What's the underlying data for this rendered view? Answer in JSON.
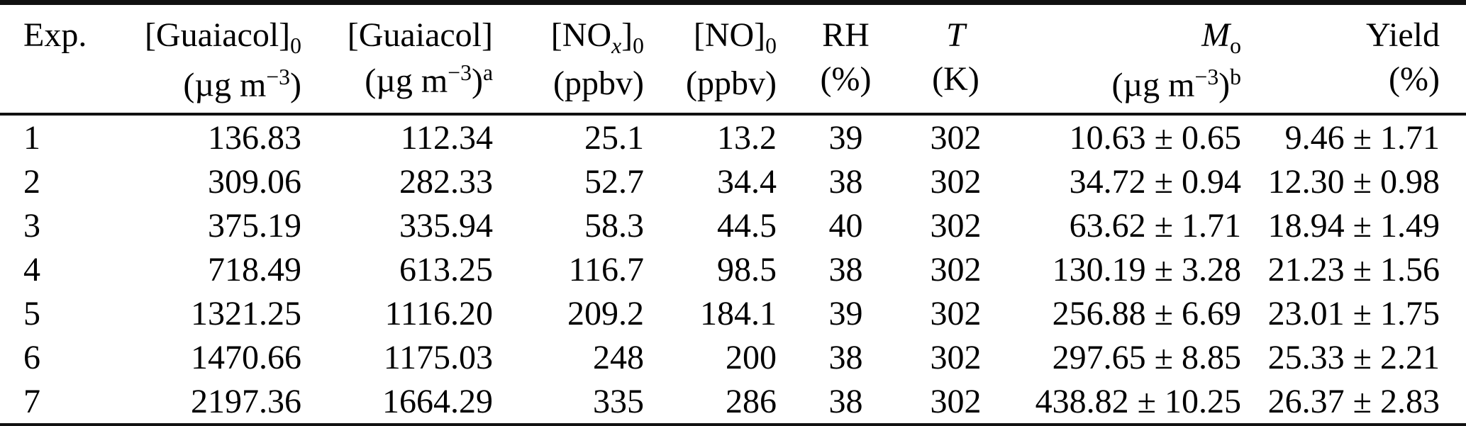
{
  "page": {
    "background": "#ffffff",
    "text_color": "#000000",
    "rule_color": "#111111"
  },
  "table": {
    "headers": [
      {
        "line1": [
          {
            "t": "Exp.",
            "s": ""
          }
        ],
        "line2": []
      },
      {
        "line1": [
          {
            "t": "[Guaiacol]",
            "s": ""
          },
          {
            "t": "0",
            "s": "sub"
          }
        ],
        "line2": [
          {
            "t": "(µg m",
            "s": ""
          },
          {
            "t": "−3",
            "s": "sup"
          },
          {
            "t": ")",
            "s": ""
          }
        ]
      },
      {
        "line1": [
          {
            "t": "[Guaiacol]",
            "s": ""
          }
        ],
        "line2": [
          {
            "t": "(µg m",
            "s": ""
          },
          {
            "t": "−3",
            "s": "sup"
          },
          {
            "t": ")",
            "s": ""
          },
          {
            "t": "a",
            "s": "sup"
          }
        ]
      },
      {
        "line1": [
          {
            "t": "[NO",
            "s": ""
          },
          {
            "t": "x",
            "s": "sub-italic"
          },
          {
            "t": "]",
            "s": ""
          },
          {
            "t": "0",
            "s": "sub"
          }
        ],
        "line2": [
          {
            "t": "(ppbv)",
            "s": ""
          }
        ]
      },
      {
        "line1": [
          {
            "t": "[NO]",
            "s": ""
          },
          {
            "t": "0",
            "s": "sub"
          }
        ],
        "line2": [
          {
            "t": "(ppbv)",
            "s": ""
          }
        ]
      },
      {
        "line1": [
          {
            "t": "RH",
            "s": ""
          }
        ],
        "line2": [
          {
            "t": "(%)",
            "s": ""
          }
        ]
      },
      {
        "line1": [
          {
            "t": "T",
            "s": "italic"
          }
        ],
        "line2": [
          {
            "t": "(K)",
            "s": ""
          }
        ]
      },
      {
        "line1": [
          {
            "t": "M",
            "s": "italic"
          },
          {
            "t": "o",
            "s": "sub"
          }
        ],
        "line2": [
          {
            "t": "(µg m",
            "s": ""
          },
          {
            "t": "−3",
            "s": "sup"
          },
          {
            "t": ")",
            "s": ""
          },
          {
            "t": "b",
            "s": "sup"
          }
        ]
      },
      {
        "line1": [
          {
            "t": "Yield",
            "s": ""
          }
        ],
        "line2": [
          {
            "t": "(%)",
            "s": ""
          }
        ]
      }
    ],
    "rows": [
      [
        "1",
        "136.83",
        "112.34",
        "25.1",
        "13.2",
        "39",
        "302",
        "10.63 ± 0.65",
        "9.46 ± 1.71"
      ],
      [
        "2",
        "309.06",
        "282.33",
        "52.7",
        "34.4",
        "38",
        "302",
        "34.72 ± 0.94",
        "12.30 ± 0.98"
      ],
      [
        "3",
        "375.19",
        "335.94",
        "58.3",
        "44.5",
        "40",
        "302",
        "63.62 ± 1.71",
        "18.94 ± 1.49"
      ],
      [
        "4",
        "718.49",
        "613.25",
        "116.7",
        "98.5",
        "38",
        "302",
        "130.19 ± 3.28",
        "21.23 ± 1.56"
      ],
      [
        "5",
        "1321.25",
        "1116.20",
        "209.2",
        "184.1",
        "39",
        "302",
        "256.88 ± 6.69",
        "23.01 ± 1.75"
      ],
      [
        "6",
        "1470.66",
        "1175.03",
        "248",
        "200",
        "38",
        "302",
        "297.65 ± 8.85",
        "25.33 ± 2.21"
      ],
      [
        "7",
        "2197.36",
        "1664.29",
        "335",
        "286",
        "38",
        "302",
        "438.82 ± 10.25",
        "26.37 ± 2.83"
      ]
    ]
  }
}
